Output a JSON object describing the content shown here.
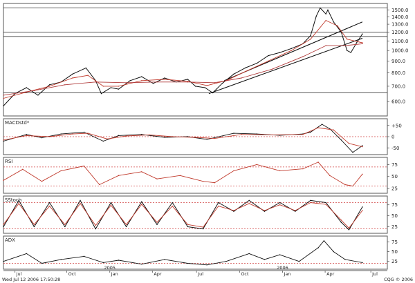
{
  "colors": {
    "background": "#ffffff",
    "price": "#111111",
    "ma_short": "#c0392b",
    "ma_long": "#b03a3a",
    "signal": "#c0392b",
    "reference": "#d24646",
    "grid": "#c8c8c8",
    "histogram": "#9a9a9a",
    "axis_highlight": "#3aa84a"
  },
  "chart_data": [
    {
      "type": "line",
      "panel": "price",
      "y_scale": "log",
      "ylim": [
        520,
        1600
      ],
      "yticks": [
        {
          "value": 1500,
          "label": "1500.0"
        },
        {
          "value": 1400,
          "label": "1400.0"
        },
        {
          "value": 1300,
          "label": "1300.0"
        },
        {
          "value": 1200,
          "label": "1200.0"
        },
        {
          "value": 1100,
          "label": "1100.0"
        },
        {
          "value": 1000,
          "label": "1000.0"
        },
        {
          "value": 900,
          "label": "900.0"
        },
        {
          "value": 800,
          "label": "800.0"
        },
        {
          "value": 700,
          "label": "700.0"
        },
        {
          "value": 600,
          "label": "600.0"
        }
      ],
      "hlines": [
        1530,
        1200,
        1150,
        655
      ],
      "trendlines": [
        {
          "t0": 0.575,
          "v0": 740,
          "t1": 0.935,
          "v1": 1330
        },
        {
          "t0": 0.535,
          "v0": 650,
          "t1": 0.935,
          "v1": 1130
        }
      ],
      "series": [
        {
          "role": "price",
          "points": [
            [
              0,
              575
            ],
            [
              0.03,
              650
            ],
            [
              0.06,
              690
            ],
            [
              0.09,
              640
            ],
            [
              0.12,
              710
            ],
            [
              0.15,
              730
            ],
            [
              0.18,
              790
            ],
            [
              0.215,
              840
            ],
            [
              0.24,
              740
            ],
            [
              0.255,
              650
            ],
            [
              0.28,
              690
            ],
            [
              0.3,
              680
            ],
            [
              0.33,
              740
            ],
            [
              0.36,
              770
            ],
            [
              0.39,
              720
            ],
            [
              0.42,
              760
            ],
            [
              0.45,
              730
            ],
            [
              0.48,
              750
            ],
            [
              0.5,
              700
            ],
            [
              0.525,
              690
            ],
            [
              0.545,
              655
            ],
            [
              0.57,
              720
            ],
            [
              0.6,
              790
            ],
            [
              0.63,
              840
            ],
            [
              0.66,
              880
            ],
            [
              0.69,
              950
            ],
            [
              0.72,
              980
            ],
            [
              0.75,
              1020
            ],
            [
              0.78,
              1070
            ],
            [
              0.8,
              1160
            ],
            [
              0.815,
              1410
            ],
            [
              0.825,
              1530
            ],
            [
              0.84,
              1440
            ],
            [
              0.845,
              1500
            ],
            [
              0.86,
              1330
            ],
            [
              0.88,
              1200
            ],
            [
              0.895,
              1000
            ],
            [
              0.905,
              980
            ],
            [
              0.92,
              1080
            ],
            [
              0.935,
              1180
            ]
          ]
        },
        {
          "role": "ma_short",
          "points": [
            [
              0,
              620
            ],
            [
              0.06,
              660
            ],
            [
              0.12,
              700
            ],
            [
              0.18,
              760
            ],
            [
              0.22,
              780
            ],
            [
              0.26,
              700
            ],
            [
              0.3,
              700
            ],
            [
              0.36,
              740
            ],
            [
              0.42,
              750
            ],
            [
              0.48,
              735
            ],
            [
              0.53,
              705
            ],
            [
              0.58,
              740
            ],
            [
              0.63,
              810
            ],
            [
              0.69,
              900
            ],
            [
              0.75,
              1000
            ],
            [
              0.8,
              1120
            ],
            [
              0.84,
              1350
            ],
            [
              0.87,
              1280
            ],
            [
              0.895,
              1120
            ],
            [
              0.935,
              1080
            ]
          ]
        },
        {
          "role": "ma_long",
          "points": [
            [
              0,
              640
            ],
            [
              0.08,
              670
            ],
            [
              0.16,
              710
            ],
            [
              0.24,
              730
            ],
            [
              0.32,
              725
            ],
            [
              0.4,
              730
            ],
            [
              0.48,
              730
            ],
            [
              0.55,
              725
            ],
            [
              0.62,
              760
            ],
            [
              0.7,
              830
            ],
            [
              0.78,
              940
            ],
            [
              0.84,
              1050
            ],
            [
              0.89,
              1050
            ],
            [
              0.935,
              1070
            ]
          ]
        }
      ]
    },
    {
      "type": "line",
      "panel": "MACD",
      "label": "MACDstd*",
      "ylim": [
        -80,
        80
      ],
      "yticks": [
        {
          "value": 50,
          "label": "+50"
        },
        {
          "value": 0,
          "label": "0"
        },
        {
          "value": -50,
          "label": "-50"
        }
      ],
      "hlines": [
        0
      ],
      "series": [
        {
          "role": "macd",
          "points": [
            [
              0,
              -20
            ],
            [
              0.06,
              10
            ],
            [
              0.1,
              -5
            ],
            [
              0.15,
              12
            ],
            [
              0.21,
              20
            ],
            [
              0.26,
              -20
            ],
            [
              0.3,
              5
            ],
            [
              0.36,
              10
            ],
            [
              0.42,
              -3
            ],
            [
              0.48,
              0
            ],
            [
              0.53,
              -12
            ],
            [
              0.6,
              15
            ],
            [
              0.66,
              12
            ],
            [
              0.72,
              6
            ],
            [
              0.78,
              12
            ],
            [
              0.8,
              20
            ],
            [
              0.83,
              55
            ],
            [
              0.85,
              35
            ],
            [
              0.88,
              -15
            ],
            [
              0.91,
              -70
            ],
            [
              0.935,
              -40
            ]
          ]
        },
        {
          "role": "signal",
          "points": [
            [
              0,
              -15
            ],
            [
              0.06,
              5
            ],
            [
              0.12,
              0
            ],
            [
              0.18,
              12
            ],
            [
              0.22,
              15
            ],
            [
              0.27,
              -10
            ],
            [
              0.32,
              3
            ],
            [
              0.38,
              8
            ],
            [
              0.44,
              0
            ],
            [
              0.5,
              -3
            ],
            [
              0.55,
              -8
            ],
            [
              0.62,
              10
            ],
            [
              0.7,
              8
            ],
            [
              0.78,
              10
            ],
            [
              0.82,
              40
            ],
            [
              0.86,
              30
            ],
            [
              0.9,
              -30
            ],
            [
              0.935,
              -45
            ]
          ]
        }
      ]
    },
    {
      "type": "line",
      "panel": "RSI",
      "label": "RSI",
      "ylim": [
        15,
        90
      ],
      "yticks": [
        {
          "value": 75,
          "label": "75"
        },
        {
          "value": 50,
          "label": "50"
        },
        {
          "value": 25,
          "label": "25"
        }
      ],
      "hlines": [
        70,
        30
      ],
      "series": [
        {
          "role": "rsi",
          "points": [
            [
              0,
              42
            ],
            [
              0.05,
              65
            ],
            [
              0.1,
              40
            ],
            [
              0.15,
              62
            ],
            [
              0.21,
              72
            ],
            [
              0.25,
              33
            ],
            [
              0.3,
              52
            ],
            [
              0.36,
              60
            ],
            [
              0.4,
              45
            ],
            [
              0.46,
              52
            ],
            [
              0.52,
              40
            ],
            [
              0.55,
              37
            ],
            [
              0.6,
              62
            ],
            [
              0.66,
              75
            ],
            [
              0.72,
              62
            ],
            [
              0.78,
              66
            ],
            [
              0.82,
              80
            ],
            [
              0.85,
              52
            ],
            [
              0.89,
              33
            ],
            [
              0.91,
              30
            ],
            [
              0.935,
              55
            ]
          ]
        }
      ]
    },
    {
      "type": "line",
      "panel": "Stochastic",
      "label": "SStoch",
      "ylim": [
        10,
        95
      ],
      "yticks": [
        {
          "value": 75,
          "label": "75"
        },
        {
          "value": 50,
          "label": "50"
        },
        {
          "value": 25,
          "label": "25"
        }
      ],
      "hlines": [
        80,
        20
      ],
      "series": [
        {
          "role": "k",
          "points": [
            [
              0,
              25
            ],
            [
              0.04,
              85
            ],
            [
              0.08,
              25
            ],
            [
              0.12,
              80
            ],
            [
              0.16,
              25
            ],
            [
              0.2,
              85
            ],
            [
              0.24,
              20
            ],
            [
              0.28,
              80
            ],
            [
              0.32,
              25
            ],
            [
              0.36,
              82
            ],
            [
              0.4,
              30
            ],
            [
              0.44,
              80
            ],
            [
              0.48,
              25
            ],
            [
              0.52,
              20
            ],
            [
              0.56,
              80
            ],
            [
              0.6,
              60
            ],
            [
              0.64,
              85
            ],
            [
              0.68,
              60
            ],
            [
              0.72,
              80
            ],
            [
              0.76,
              60
            ],
            [
              0.8,
              85
            ],
            [
              0.84,
              80
            ],
            [
              0.88,
              35
            ],
            [
              0.9,
              18
            ],
            [
              0.935,
              70
            ]
          ]
        },
        {
          "role": "d",
          "points": [
            [
              0,
              30
            ],
            [
              0.04,
              78
            ],
            [
              0.08,
              30
            ],
            [
              0.12,
              72
            ],
            [
              0.16,
              30
            ],
            [
              0.2,
              78
            ],
            [
              0.24,
              28
            ],
            [
              0.28,
              74
            ],
            [
              0.32,
              30
            ],
            [
              0.36,
              76
            ],
            [
              0.4,
              35
            ],
            [
              0.44,
              72
            ],
            [
              0.48,
              30
            ],
            [
              0.52,
              24
            ],
            [
              0.56,
              72
            ],
            [
              0.6,
              62
            ],
            [
              0.64,
              78
            ],
            [
              0.68,
              62
            ],
            [
              0.72,
              75
            ],
            [
              0.76,
              62
            ],
            [
              0.8,
              80
            ],
            [
              0.84,
              76
            ],
            [
              0.88,
              40
            ],
            [
              0.9,
              22
            ],
            [
              0.935,
              62
            ]
          ]
        }
      ]
    },
    {
      "type": "line",
      "panel": "ADX",
      "label": "ADX",
      "ylim": [
        5,
        90
      ],
      "yticks": [
        {
          "value": 75,
          "label": "75"
        },
        {
          "value": 50,
          "label": "50"
        },
        {
          "value": 25,
          "label": "25"
        }
      ],
      "hlines": [
        20
      ],
      "series": [
        {
          "role": "adx",
          "points": [
            [
              0,
              25
            ],
            [
              0.06,
              45
            ],
            [
              0.1,
              20
            ],
            [
              0.15,
              30
            ],
            [
              0.21,
              38
            ],
            [
              0.26,
              22
            ],
            [
              0.3,
              28
            ],
            [
              0.36,
              18
            ],
            [
              0.42,
              30
            ],
            [
              0.48,
              20
            ],
            [
              0.53,
              16
            ],
            [
              0.58,
              25
            ],
            [
              0.64,
              45
            ],
            [
              0.68,
              30
            ],
            [
              0.72,
              42
            ],
            [
              0.77,
              25
            ],
            [
              0.82,
              60
            ],
            [
              0.835,
              78
            ],
            [
              0.86,
              50
            ],
            [
              0.89,
              30
            ],
            [
              0.935,
              22
            ]
          ]
        }
      ]
    }
  ],
  "x_axis": {
    "labels": [
      {
        "t": 0.03,
        "text": "Jul"
      },
      {
        "t": 0.165,
        "text": "Oct"
      },
      {
        "t": 0.277,
        "text": "Jan"
      },
      {
        "t": 0.388,
        "text": "Apr"
      },
      {
        "t": 0.503,
        "text": "Jul"
      },
      {
        "t": 0.615,
        "text": "Oct"
      },
      {
        "t": 0.727,
        "text": "Jan"
      },
      {
        "t": 0.838,
        "text": "Apr"
      },
      {
        "t": 0.957,
        "text": "Jul"
      }
    ],
    "years": [
      {
        "t": 0.277,
        "text": "2005"
      },
      {
        "t": 0.727,
        "text": "2006"
      }
    ]
  },
  "footer": {
    "timestamp": "Wed Jul 12 2006 17:50:28",
    "copyright": "CQG © 2006"
  }
}
